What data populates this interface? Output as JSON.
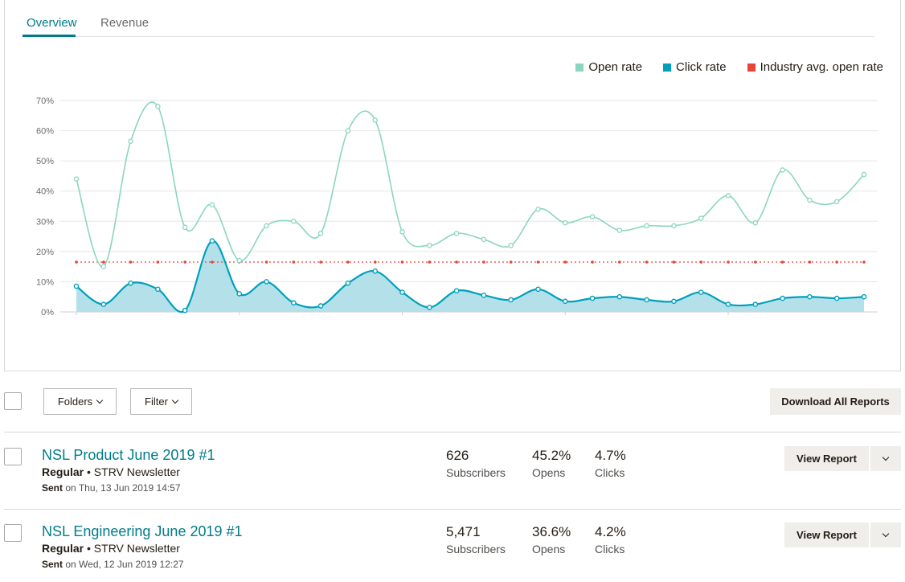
{
  "tabs": [
    {
      "label": "Overview",
      "active": true
    },
    {
      "label": "Revenue",
      "active": false
    }
  ],
  "legend": [
    {
      "label": "Open rate",
      "color": "#8bd5c1"
    },
    {
      "label": "Click rate",
      "color": "#00a0bc"
    },
    {
      "label": "Industry avg. open rate",
      "color": "#e8443a"
    }
  ],
  "chart_data": {
    "type": "line",
    "title": "",
    "ylim": [
      0,
      70
    ],
    "yticks": [
      "0%",
      "10%",
      "20%",
      "30%",
      "40%",
      "50%",
      "60%",
      "70%"
    ],
    "series": [
      {
        "name": "Open rate",
        "color": "#8bd5c1",
        "values": [
          44,
          15,
          56.5,
          68,
          28,
          35.5,
          17,
          28.5,
          30,
          26,
          60,
          63.5,
          26.5,
          22,
          26,
          24,
          22,
          34,
          29.5,
          31.5,
          27,
          28.5,
          28.5,
          31,
          38.5,
          29.5,
          47,
          37,
          36.5,
          45.5
        ]
      },
      {
        "name": "Click rate",
        "color": "#00a0bc",
        "values": [
          8.5,
          2.5,
          9.5,
          7.5,
          0.5,
          23.5,
          6,
          10,
          3,
          2,
          9.5,
          13.5,
          6.5,
          1.5,
          7,
          5.5,
          4,
          7.5,
          3.5,
          4.5,
          5,
          4,
          3.5,
          6.5,
          2.5,
          2.5,
          4.5,
          5,
          4.5,
          5
        ]
      },
      {
        "name": "Industry avg. open rate",
        "color": "#e8443a",
        "values": [
          16.5,
          16.5,
          16.5,
          16.5,
          16.5,
          16.5,
          16.5,
          16.5,
          16.5,
          16.5,
          16.5,
          16.5,
          16.5,
          16.5,
          16.5,
          16.5,
          16.5,
          16.5,
          16.5,
          16.5,
          16.5,
          16.5,
          16.5,
          16.5,
          16.5,
          16.5,
          16.5,
          16.5,
          16.5,
          16.5
        ]
      }
    ]
  },
  "toolbar": {
    "folders_label": "Folders",
    "filter_label": "Filter",
    "download_label": "Download All Reports"
  },
  "campaigns": [
    {
      "title": "NSL Product June 2019 #1",
      "type": "Regular",
      "list": " • STRV Newsletter",
      "sent_label": "Sent",
      "sent_date": " on Thu, 13 Jun 2019 14:57",
      "subscribers": "626",
      "subscribers_label": "Subscribers",
      "opens": "45.2%",
      "opens_label": "Opens",
      "clicks": "4.7%",
      "clicks_label": "Clicks",
      "action_label": "View Report"
    },
    {
      "title": "NSL Engineering June 2019 #1",
      "type": "Regular",
      "list": " • STRV Newsletter",
      "sent_label": "Sent",
      "sent_date": " on Wed, 12 Jun 2019 12:27",
      "subscribers": "5,471",
      "subscribers_label": "Subscribers",
      "opens": "36.6%",
      "opens_label": "Opens",
      "clicks": "4.2%",
      "clicks_label": "Clicks",
      "action_label": "View Report"
    }
  ]
}
